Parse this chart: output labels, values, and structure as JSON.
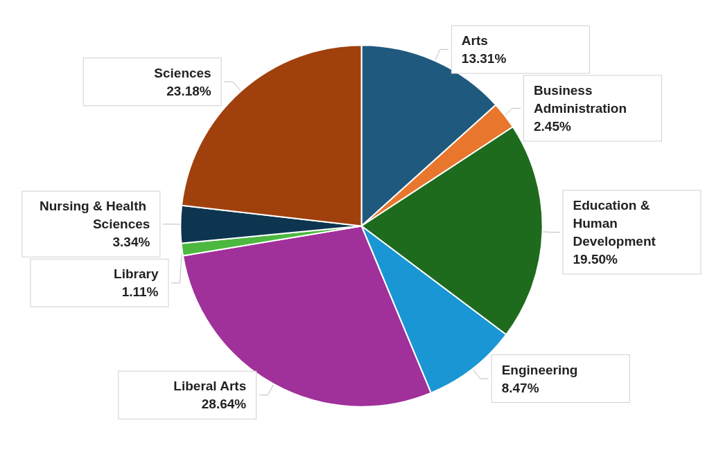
{
  "chart_data": {
    "type": "pie",
    "categories": [
      "Arts",
      "Business Administration",
      "Education & Human Development",
      "Engineering",
      "Liberal Arts",
      "Library",
      "Nursing & Health Sciences",
      "Sciences"
    ],
    "values": [
      13.31,
      2.45,
      19.5,
      8.47,
      28.64,
      1.11,
      3.34,
      23.18
    ],
    "value_labels": [
      "13.31%",
      "2.45%",
      "19.50%",
      "8.47%",
      "28.64%",
      "1.11%",
      "3.34%",
      "23.18%"
    ],
    "colors": [
      "#1f5a7e",
      "#e8762d",
      "#1e6b1e",
      "#1a96d4",
      "#a0309a",
      "#4cb840",
      "#0d3550",
      "#a0410d"
    ],
    "legend": false
  }
}
